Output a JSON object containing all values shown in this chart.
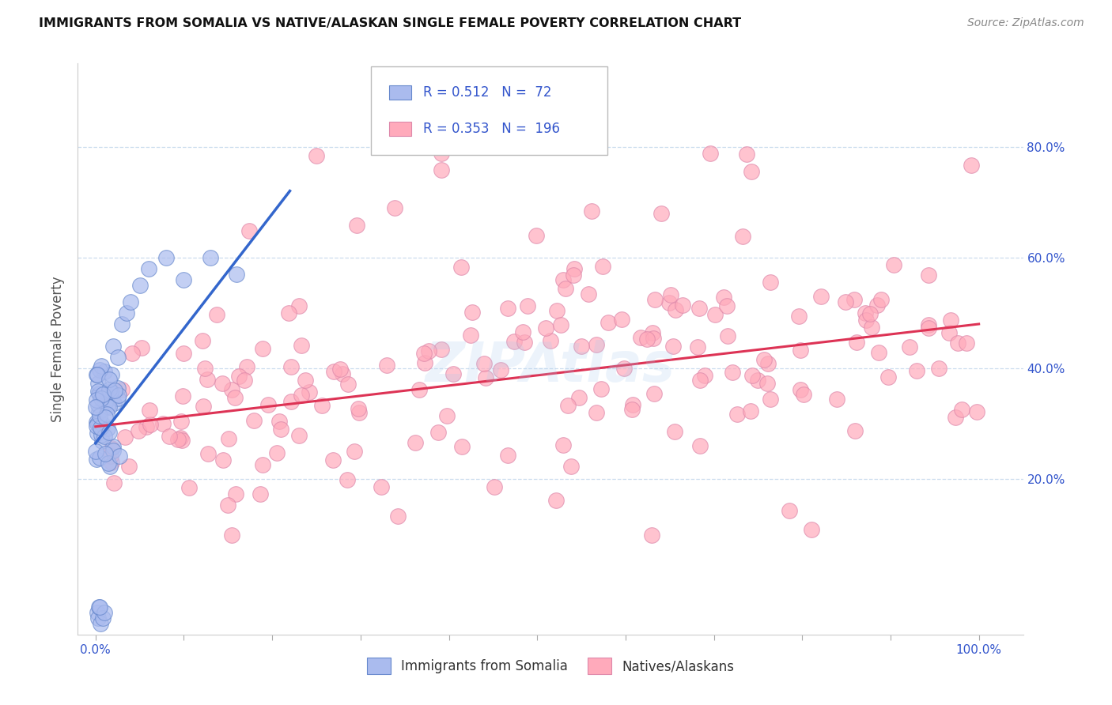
{
  "title": "IMMIGRANTS FROM SOMALIA VS NATIVE/ALASKAN SINGLE FEMALE POVERTY CORRELATION CHART",
  "source": "Source: ZipAtlas.com",
  "ylabel": "Single Female Poverty",
  "legend_blue_r": "0.512",
  "legend_blue_n": " 72",
  "legend_pink_r": "0.353",
  "legend_pink_n": " 196",
  "legend_label_blue": "Immigrants from Somalia",
  "legend_label_pink": "Natives/Alaskans",
  "blue_dot_color": "#aabbee",
  "blue_dot_edge": "#6688cc",
  "blue_line_color": "#3366cc",
  "pink_dot_color": "#ffaabb",
  "pink_dot_edge": "#dd88aa",
  "pink_line_color": "#dd3355",
  "axis_label_color": "#3355cc",
  "title_color": "#111111",
  "source_color": "#888888",
  "grid_color": "#ccddee",
  "watermark_color": "#aaccee",
  "y_ticks": [
    0.2,
    0.4,
    0.6,
    0.8
  ],
  "y_tick_labels": [
    "20.0%",
    "40.0%",
    "60.0%",
    "80.0%"
  ],
  "xlim": [
    -0.02,
    1.05
  ],
  "ylim": [
    -0.08,
    0.95
  ],
  "blue_line_x0": 0.0,
  "blue_line_y0": 0.265,
  "blue_line_x1": 0.22,
  "blue_line_y1": 0.72,
  "pink_line_x0": 0.0,
  "pink_line_y0": 0.295,
  "pink_line_x1": 1.0,
  "pink_line_y1": 0.48
}
